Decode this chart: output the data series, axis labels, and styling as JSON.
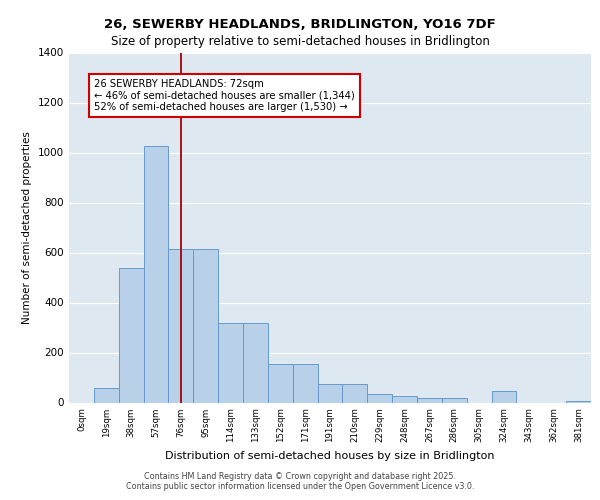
{
  "title_line1": "26, SEWERBY HEADLANDS, BRIDLINGTON, YO16 7DF",
  "title_line2": "Size of property relative to semi-detached houses in Bridlington",
  "xlabel": "Distribution of semi-detached houses by size in Bridlington",
  "ylabel": "Number of semi-detached properties",
  "footer_line1": "Contains HM Land Registry data © Crown copyright and database right 2025.",
  "footer_line2": "Contains public sector information licensed under the Open Government Licence v3.0.",
  "bar_labels": [
    "0sqm",
    "19sqm",
    "38sqm",
    "57sqm",
    "76sqm",
    "95sqm",
    "114sqm",
    "133sqm",
    "152sqm",
    "171sqm",
    "191sqm",
    "210sqm",
    "229sqm",
    "248sqm",
    "267sqm",
    "286sqm",
    "305sqm",
    "324sqm",
    "343sqm",
    "362sqm",
    "381sqm"
  ],
  "bar_heights": [
    0,
    60,
    540,
    1025,
    615,
    615,
    320,
    320,
    155,
    155,
    75,
    75,
    35,
    25,
    20,
    20,
    0,
    45,
    0,
    0,
    5
  ],
  "bar_color": "#b8d0e8",
  "bar_edge_color": "#6699cc",
  "background_color": "#dde8f0",
  "grid_color": "#ffffff",
  "vline_x": 4,
  "vline_color": "#aa0000",
  "ylim": [
    0,
    1400
  ],
  "yticks": [
    0,
    200,
    400,
    600,
    800,
    1000,
    1200,
    1400
  ],
  "annotation_title": "26 SEWERBY HEADLANDS: 72sqm",
  "annotation_line2": "← 46% of semi-detached houses are smaller (1,344)",
  "annotation_line3": "52% of semi-detached houses are larger (1,530) →",
  "annotation_box_color": "#ffffff",
  "annotation_box_edge": "#cc0000",
  "fig_bg": "#ffffff"
}
